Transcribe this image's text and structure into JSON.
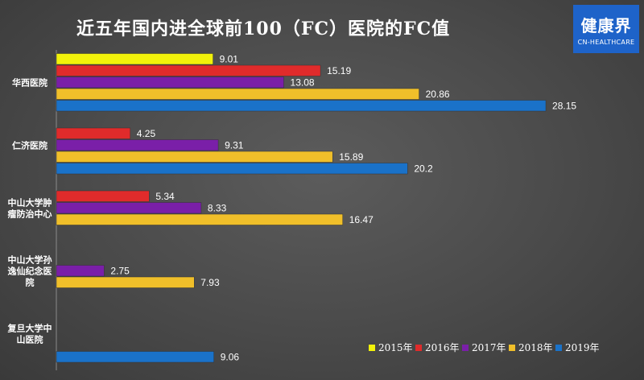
{
  "title": "近五年国内进全球前100（FC）医院的FC值",
  "logo": {
    "brand": "健康界",
    "sub": "CN-HEALTHCARE"
  },
  "chart_data": {
    "type": "bar",
    "orientation": "horizontal",
    "categories": [
      [
        "华西医院"
      ],
      [
        "仁济医院"
      ],
      [
        "中山大学肿",
        "瘤防治中心"
      ],
      [
        "中山大学孙",
        "逸仙纪念医",
        "院"
      ],
      [
        "复旦大学中",
        "山医院"
      ]
    ],
    "series": [
      {
        "name": "2015年",
        "color": "#f2f20a",
        "values": [
          9.01,
          null,
          null,
          null,
          null
        ]
      },
      {
        "name": "2016年",
        "color": "#e02b2b",
        "values": [
          15.19,
          4.25,
          5.34,
          null,
          null
        ]
      },
      {
        "name": "2017年",
        "color": "#7a1fa8",
        "values": [
          13.08,
          9.31,
          8.33,
          2.75,
          null
        ]
      },
      {
        "name": "2018年",
        "color": "#f0bf2a",
        "values": [
          20.86,
          15.89,
          16.47,
          7.93,
          null
        ]
      },
      {
        "name": "2019年",
        "color": "#1a72c9",
        "values": [
          28.15,
          20.2,
          null,
          null,
          9.06
        ]
      }
    ],
    "data_labels": [
      [
        "9.01",
        "15.19",
        "13.08",
        "20.86",
        "28.15"
      ],
      [
        null,
        "4.25",
        "9.31",
        "15.89",
        "20.2"
      ],
      [
        null,
        "5.34",
        "8.33",
        "16.47",
        null
      ],
      [
        null,
        null,
        "2.75",
        "7.93",
        null
      ],
      [
        null,
        null,
        null,
        null,
        "9.06"
      ]
    ],
    "xlim": [
      0,
      30
    ],
    "grid": false,
    "legend": "bottom-right"
  }
}
